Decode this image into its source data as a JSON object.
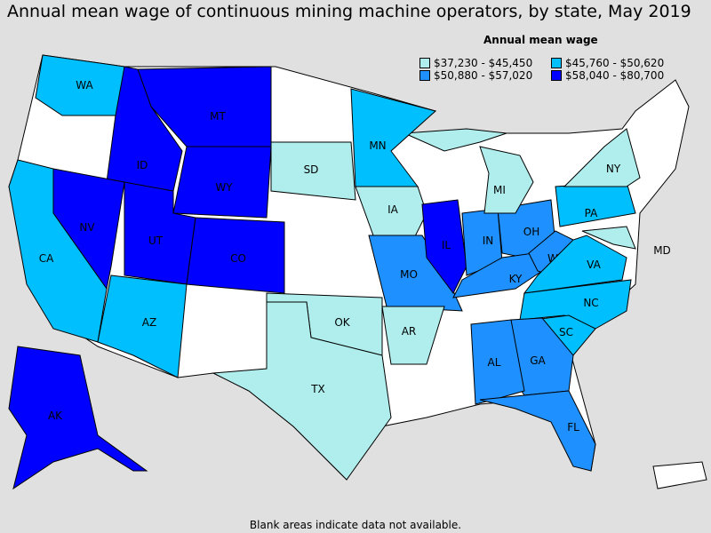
{
  "title": "Annual mean wage of continuous mining machine operators, by state, May 2019",
  "legend": {
    "title": "Annual mean wage",
    "items": [
      {
        "label": "$37,230 - $45,450",
        "color": "#b0eeee"
      },
      {
        "label": "$45,760 - $50,620",
        "color": "#00bfff"
      },
      {
        "label": "$50,880 - $57,020",
        "color": "#1e90ff"
      },
      {
        "label": "$58,040 - $80,700",
        "color": "#0000ff"
      }
    ]
  },
  "note": "Blank areas indicate data not available.",
  "states": [
    {
      "abbr": "WA",
      "cat": 1
    },
    {
      "abbr": "MT",
      "cat": 3
    },
    {
      "abbr": "ID",
      "cat": 3
    },
    {
      "abbr": "WY",
      "cat": 3
    },
    {
      "abbr": "NV",
      "cat": 3
    },
    {
      "abbr": "UT",
      "cat": 3
    },
    {
      "abbr": "CO",
      "cat": 3
    },
    {
      "abbr": "CA",
      "cat": 1
    },
    {
      "abbr": "AZ",
      "cat": 1
    },
    {
      "abbr": "SD",
      "cat": 0
    },
    {
      "abbr": "MN",
      "cat": 1
    },
    {
      "abbr": "IA",
      "cat": 0
    },
    {
      "abbr": "MO",
      "cat": 2
    },
    {
      "abbr": "AR",
      "cat": 0
    },
    {
      "abbr": "OK",
      "cat": 0
    },
    {
      "abbr": "TX",
      "cat": 0
    },
    {
      "abbr": "IL",
      "cat": 3
    },
    {
      "abbr": "IN",
      "cat": 2
    },
    {
      "abbr": "OH",
      "cat": 2
    },
    {
      "abbr": "KY",
      "cat": 2
    },
    {
      "abbr": "WV",
      "cat": 2
    },
    {
      "abbr": "VA",
      "cat": 1
    },
    {
      "abbr": "NC",
      "cat": 1
    },
    {
      "abbr": "SC",
      "cat": 1
    },
    {
      "abbr": "GA",
      "cat": 2
    },
    {
      "abbr": "AL",
      "cat": 2
    },
    {
      "abbr": "FL",
      "cat": 2
    },
    {
      "abbr": "MI",
      "cat": 0
    },
    {
      "abbr": "PA",
      "cat": 1
    },
    {
      "abbr": "NY",
      "cat": 0
    },
    {
      "abbr": "MD",
      "cat": 0
    },
    {
      "abbr": "AK",
      "cat": 3
    }
  ]
}
